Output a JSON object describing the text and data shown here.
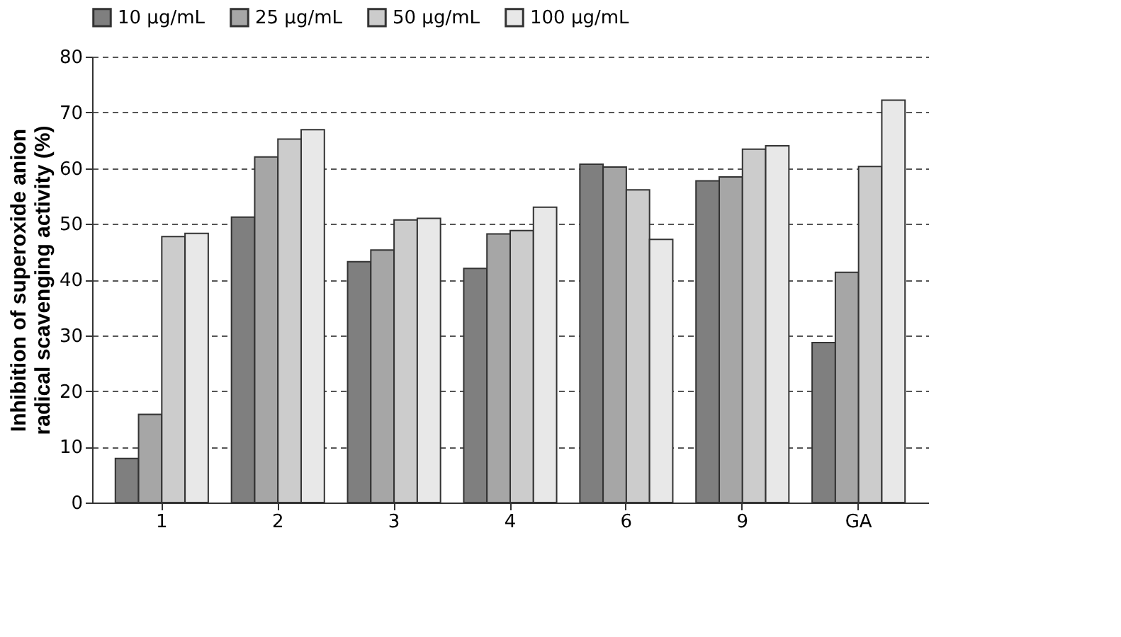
{
  "chart_data": {
    "type": "bar",
    "ylabel": "Inhibition of superoxide anion radical scavenging activity (%)",
    "categories": [
      "1",
      "2",
      "3",
      "4",
      "6",
      "9",
      "GA"
    ],
    "series": [
      {
        "name": "10 µg/mL",
        "color": "#7f7f7f",
        "values": [
          7.9,
          51.2,
          43.2,
          42.0,
          60.7,
          57.7,
          28.7
        ]
      },
      {
        "name": "25 µg/mL",
        "color": "#a6a6a6",
        "values": [
          15.8,
          62.0,
          45.3,
          48.2,
          60.2,
          58.4,
          41.3
        ]
      },
      {
        "name": "50 µg/mL",
        "color": "#cccccc",
        "values": [
          47.7,
          65.2,
          50.7,
          48.8,
          56.1,
          63.4,
          60.3
        ]
      },
      {
        "name": "100 µg/mL",
        "color": "#e8e8e8",
        "values": [
          48.3,
          66.9,
          51.0,
          53.0,
          47.2,
          64.0,
          72.2
        ]
      }
    ],
    "ylim": [
      0,
      80
    ],
    "yticks": [
      0,
      10,
      20,
      30,
      40,
      50,
      60,
      70,
      80
    ],
    "grid": "y",
    "legend": "top"
  }
}
